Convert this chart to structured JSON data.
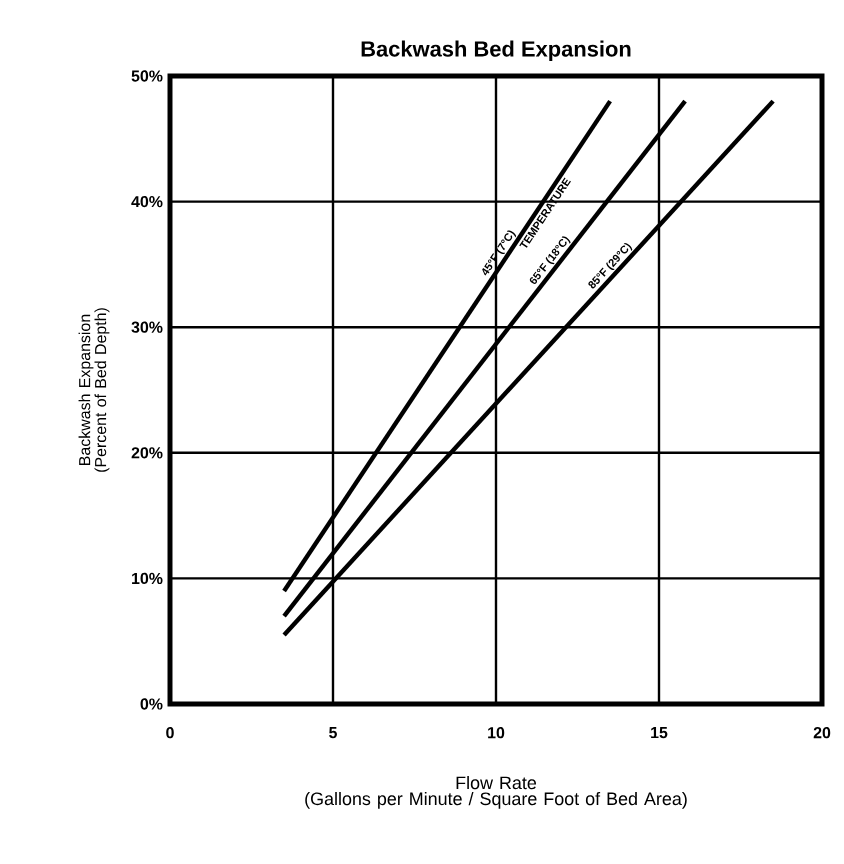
{
  "chart_data": {
    "type": "line",
    "title": "Backwash Bed Expansion",
    "xlabel": "Flow Rate\n(Gallons per Minute / Square Foot of Bed Area)",
    "ylabel": "Backwash Expansion\n(Percent of Bed Depth)",
    "xlim": [
      0,
      20
    ],
    "ylim": [
      0,
      50
    ],
    "xticks": [
      0,
      5,
      10,
      15,
      20
    ],
    "yticks": [
      {
        "value": 0,
        "label": "0%"
      },
      {
        "value": 10,
        "label": "10%"
      },
      {
        "value": 20,
        "label": "20%"
      },
      {
        "value": 30,
        "label": "30%"
      },
      {
        "value": 40,
        "label": "40%"
      },
      {
        "value": 50,
        "label": "50%"
      }
    ],
    "grid": true,
    "marker": "none",
    "line_style": "solid",
    "annotations": [
      "TEMPERATURE"
    ],
    "series": [
      {
        "name": "45°F (7°C)",
        "color": "#000000",
        "x": [
          3.5,
          13.5
        ],
        "values": [
          9,
          48
        ]
      },
      {
        "name": "65°F (18°C)",
        "color": "#000000",
        "x": [
          3.5,
          15.8
        ],
        "values": [
          7,
          48
        ]
      },
      {
        "name": "85°F (29°C)",
        "color": "#000000",
        "x": [
          3.5,
          18.5
        ],
        "values": [
          5.5,
          48
        ]
      }
    ]
  }
}
